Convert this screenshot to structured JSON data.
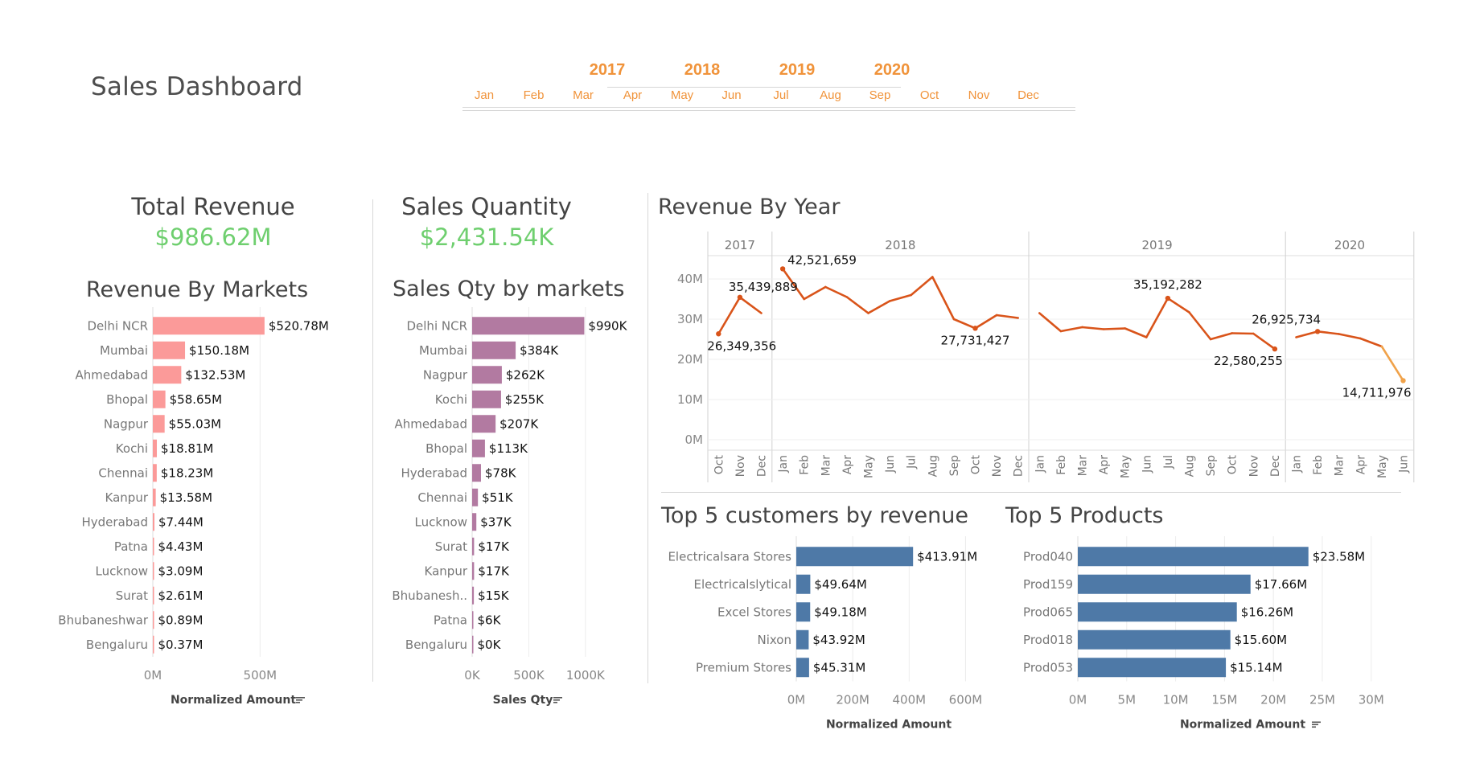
{
  "dashboard": {
    "title": "Sales Dashboard"
  },
  "filter": {
    "years": [
      "2017",
      "2018",
      "2019",
      "2020"
    ],
    "months": [
      "Jan",
      "Feb",
      "Mar",
      "Apr",
      "May",
      "Jun",
      "Jul",
      "Aug",
      "Sep",
      "Oct",
      "Nov",
      "Dec"
    ],
    "accent_color": "#f0933a"
  },
  "kpis": {
    "revenue": {
      "title": "Total Revenue",
      "value": "$986.62M"
    },
    "quantity": {
      "title": "Sales Quantity",
      "value": "$2,431.54K"
    },
    "value_color": "#6fcf6f"
  },
  "icons": {
    "sort": "sort-descending-icon"
  },
  "chart_data": [
    {
      "id": "revenue_by_markets",
      "type": "bar",
      "orientation": "horizontal",
      "title": "Revenue By Markets",
      "xlabel": "Normalized Amount",
      "categories": [
        "Delhi NCR",
        "Mumbai",
        "Ahmedabad",
        "Bhopal",
        "Nagpur",
        "Kochi",
        "Chennai",
        "Kanpur",
        "Hyderabad",
        "Patna",
        "Lucknow",
        "Surat",
        "Bhubaneshwar",
        "Bengaluru"
      ],
      "values": [
        520.78,
        150.18,
        132.53,
        58.65,
        55.03,
        18.81,
        18.23,
        13.58,
        7.44,
        4.43,
        3.09,
        2.61,
        0.89,
        0.37
      ],
      "value_labels": [
        "$520.78M",
        "$150.18M",
        "$132.53M",
        "$58.65M",
        "$55.03M",
        "$18.81M",
        "$18.23M",
        "$13.58M",
        "$7.44M",
        "$4.43M",
        "$3.09M",
        "$2.61M",
        "$0.89M",
        "$0.37M"
      ],
      "xticks": [
        0,
        500
      ],
      "xtick_labels": [
        "0M",
        "500M"
      ],
      "xlim": [
        0,
        900
      ],
      "color": "#fb9a99",
      "grid": true
    },
    {
      "id": "sales_qty_by_markets",
      "type": "bar",
      "orientation": "horizontal",
      "title": "Sales Qty by markets",
      "xlabel": "Sales Qty",
      "categories": [
        "Delhi NCR",
        "Mumbai",
        "Nagpur",
        "Kochi",
        "Ahmedabad",
        "Bhopal",
        "Hyderabad",
        "Chennai",
        "Lucknow",
        "Surat",
        "Kanpur",
        "Bhubanesh..",
        "Patna",
        "Bengaluru"
      ],
      "values": [
        990,
        384,
        262,
        255,
        207,
        113,
        78,
        51,
        37,
        17,
        17,
        15,
        6,
        0
      ],
      "value_labels": [
        "$990K",
        "$384K",
        "$262K",
        "$255K",
        "$207K",
        "$113K",
        "$78K",
        "$51K",
        "$37K",
        "$17K",
        "$17K",
        "$15K",
        "$6K",
        "$0K"
      ],
      "xticks": [
        0,
        500,
        1000
      ],
      "xtick_labels": [
        "0K",
        "500K",
        "1000K"
      ],
      "xlim": [
        0,
        1420
      ],
      "color": "#b27aa1",
      "grid": true
    },
    {
      "id": "revenue_by_year",
      "type": "line",
      "title": "Revenue By Year",
      "years": [
        {
          "label": "2017",
          "months": [
            "Oct",
            "Nov",
            "Dec"
          ],
          "values": [
            26.35,
            35.44,
            31.5
          ]
        },
        {
          "label": "2018",
          "months": [
            "Jan",
            "Feb",
            "Mar",
            "Apr",
            "May",
            "Jun",
            "Jul",
            "Aug",
            "Sep",
            "Oct",
            "Nov",
            "Dec"
          ],
          "values": [
            42.52,
            35.0,
            38.0,
            35.5,
            31.5,
            34.5,
            36.0,
            40.5,
            30.0,
            27.73,
            31.0,
            30.3
          ]
        },
        {
          "label": "2019",
          "months": [
            "Jan",
            "Feb",
            "Mar",
            "Apr",
            "May",
            "Jun",
            "Jul",
            "Aug",
            "Sep",
            "Oct",
            "Nov",
            "Dec"
          ],
          "values": [
            31.5,
            27.0,
            28.0,
            27.5,
            27.7,
            25.5,
            35.19,
            31.7,
            25.0,
            26.5,
            26.4,
            22.58
          ]
        },
        {
          "label": "2020",
          "months": [
            "Jan",
            "Feb",
            "Mar",
            "Apr",
            "May",
            "Jun"
          ],
          "values": [
            25.5,
            26.93,
            26.3,
            25.2,
            23.2,
            14.71
          ]
        }
      ],
      "yticks": [
        0,
        10,
        20,
        30,
        40
      ],
      "ytick_labels": [
        "0M",
        "10M",
        "20M",
        "30M",
        "40M"
      ],
      "ylim": [
        0,
        45
      ],
      "annotations": [
        {
          "year": 0,
          "month": 0,
          "label": "26,349,356"
        },
        {
          "year": 0,
          "month": 1,
          "label": "35,439,889"
        },
        {
          "year": 1,
          "month": 0,
          "label": "42,521,659"
        },
        {
          "year": 1,
          "month": 9,
          "label": "27,731,427"
        },
        {
          "year": 2,
          "month": 6,
          "label": "35,192,282"
        },
        {
          "year": 2,
          "month": 11,
          "label": "22,580,255"
        },
        {
          "year": 3,
          "month": 1,
          "label": "26,925,734"
        },
        {
          "year": 3,
          "month": 5,
          "label": "14,711,976"
        }
      ],
      "line_color": "#d9541a",
      "last_segment_color": "#f0a24a",
      "grid": true
    },
    {
      "id": "top5_customers",
      "type": "bar",
      "orientation": "horizontal",
      "title": "Top 5 customers by revenue",
      "xlabel": "Normalized Amount",
      "categories": [
        "Electricalsara Stores",
        "Electricalslytical",
        "Excel Stores",
        "Nixon",
        "Premium Stores"
      ],
      "values": [
        413.91,
        49.64,
        49.18,
        43.92,
        45.31
      ],
      "value_labels": [
        "$413.91M",
        "$49.64M",
        "$49.18M",
        "$43.92M",
        "$45.31M"
      ],
      "xticks": [
        0,
        200,
        400,
        600
      ],
      "xtick_labels": [
        "0M",
        "200M",
        "400M",
        "600M"
      ],
      "xlim": [
        0,
        650
      ],
      "color": "#4e79a7",
      "grid": true
    },
    {
      "id": "top5_products",
      "type": "bar",
      "orientation": "horizontal",
      "title": "Top 5 Products",
      "xlabel": "Normalized Amount",
      "categories": [
        "Prod040",
        "Prod159",
        "Prod065",
        "Prod018",
        "Prod053"
      ],
      "values": [
        23.58,
        17.66,
        16.26,
        15.6,
        15.14
      ],
      "value_labels": [
        "$23.58M",
        "$17.66M",
        "$16.26M",
        "$15.60M",
        "$15.14M"
      ],
      "xticks": [
        0,
        5,
        10,
        15,
        20,
        25,
        30
      ],
      "xtick_labels": [
        "0M",
        "5M",
        "10M",
        "15M",
        "20M",
        "25M",
        "30M"
      ],
      "xlim": [
        0,
        31.5
      ],
      "color": "#4e79a7",
      "grid": true
    }
  ]
}
